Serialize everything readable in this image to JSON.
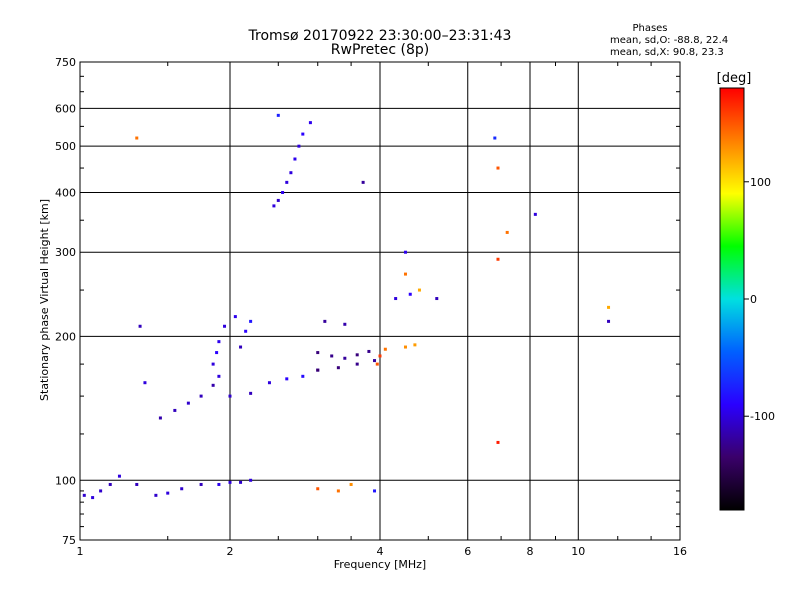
{
  "chart_data": {
    "type": "scatter",
    "title": "Tromsø 20170922 23:30:00–23:31:43",
    "subtitle": "RwPretec (8p)",
    "xlabel": "Frequency [MHz]",
    "ylabel": "Stationary phase Virtual Height [km]",
    "x_scale": "log",
    "y_scale": "log",
    "xlim": [
      1,
      16
    ],
    "ylim": [
      75,
      750
    ],
    "x_ticks": [
      1,
      2,
      4,
      6,
      8,
      10,
      16
    ],
    "y_ticks": [
      75,
      100,
      200,
      300,
      400,
      500,
      600,
      750
    ],
    "grid": true,
    "info": {
      "heading": "Phases",
      "line_o": "mean, sd,O: -88.8, 22.4",
      "line_x": "mean, sd,X:  90.8, 23.3"
    },
    "colorbar": {
      "label": "[deg]",
      "range": [
        -180,
        180
      ],
      "ticks": [
        -100,
        0,
        100
      ],
      "colors": [
        "#000000",
        "#3a006a",
        "#2a00ff",
        "#0060ff",
        "#00e0e0",
        "#00ff00",
        "#ffff00",
        "#ff8000",
        "#ff0000"
      ]
    },
    "series": [
      {
        "points": [
          [
            1.02,
            93,
            -105
          ],
          [
            1.06,
            92,
            -100
          ],
          [
            1.1,
            95,
            -105
          ],
          [
            1.15,
            98,
            -110
          ],
          [
            1.2,
            102,
            -100
          ],
          [
            1.3,
            98,
            -110
          ],
          [
            1.42,
            93,
            -105
          ],
          [
            1.5,
            94,
            -100
          ],
          [
            1.6,
            96,
            -105
          ],
          [
            1.75,
            98,
            -110
          ],
          [
            1.9,
            98,
            -95
          ],
          [
            2.0,
            99,
            -100
          ],
          [
            2.1,
            99,
            -105
          ],
          [
            2.2,
            100,
            -100
          ]
        ]
      },
      {
        "points": [
          [
            1.45,
            135,
            -115
          ],
          [
            1.55,
            140,
            -110
          ],
          [
            1.65,
            145,
            -105
          ],
          [
            1.75,
            150,
            -110
          ],
          [
            1.85,
            158,
            -115
          ],
          [
            1.9,
            165,
            -100
          ],
          [
            2.0,
            150,
            -105
          ],
          [
            2.2,
            152,
            -110
          ],
          [
            2.4,
            160,
            -100
          ],
          [
            2.6,
            163,
            -90
          ],
          [
            2.8,
            165,
            -85
          ],
          [
            3.0,
            170,
            -95
          ]
        ]
      },
      {
        "points": [
          [
            1.85,
            175,
            -100
          ],
          [
            1.88,
            185,
            -90
          ],
          [
            1.9,
            195,
            -95
          ],
          [
            1.95,
            210,
            -100
          ],
          [
            2.05,
            220,
            -95
          ],
          [
            2.1,
            190,
            -110
          ],
          [
            2.15,
            205,
            -90
          ],
          [
            2.2,
            215,
            -80
          ]
        ]
      },
      {
        "points": [
          [
            2.45,
            375,
            -100
          ],
          [
            2.5,
            385,
            -105
          ],
          [
            2.55,
            400,
            -95
          ],
          [
            2.6,
            420,
            -100
          ],
          [
            2.65,
            440,
            -100
          ],
          [
            2.7,
            470,
            -95
          ],
          [
            2.75,
            500,
            -100
          ],
          [
            2.8,
            530,
            -90
          ],
          [
            2.9,
            560,
            -95
          ],
          [
            2.5,
            580,
            -75
          ]
        ]
      },
      {
        "points": [
          [
            3.0,
            185,
            -130
          ],
          [
            3.2,
            182,
            -125
          ],
          [
            3.4,
            180,
            -120
          ],
          [
            3.6,
            183,
            -130
          ],
          [
            3.8,
            186,
            -125
          ],
          [
            3.0,
            170,
            -135
          ],
          [
            3.3,
            172,
            -130
          ],
          [
            3.6,
            175,
            -125
          ],
          [
            3.9,
            178,
            -120
          ],
          [
            3.1,
            215,
            -120
          ],
          [
            3.4,
            212,
            -115
          ]
        ]
      },
      {
        "points": [
          [
            3.95,
            175,
            150
          ],
          [
            4.0,
            182,
            160
          ],
          [
            4.1,
            188,
            140
          ],
          [
            4.5,
            190,
            130
          ],
          [
            4.7,
            192,
            125
          ],
          [
            4.3,
            240,
            -100
          ],
          [
            4.6,
            245,
            -90
          ],
          [
            4.5,
            300,
            -95
          ],
          [
            4.8,
            250,
            120
          ],
          [
            5.2,
            240,
            -110
          ],
          [
            4.5,
            270,
            140
          ]
        ]
      },
      {
        "points": [
          [
            1.3,
            520,
            140
          ],
          [
            1.32,
            210,
            -110
          ],
          [
            1.35,
            160,
            -100
          ],
          [
            3.0,
            96,
            150
          ],
          [
            3.3,
            95,
            140
          ],
          [
            3.5,
            98,
            130
          ],
          [
            3.9,
            95,
            -80
          ],
          [
            6.8,
            520,
            -70
          ],
          [
            6.9,
            450,
            150
          ],
          [
            6.9,
            290,
            160
          ],
          [
            6.9,
            120,
            170
          ],
          [
            7.2,
            330,
            140
          ],
          [
            8.2,
            360,
            -100
          ],
          [
            11.5,
            230,
            120
          ],
          [
            11.5,
            215,
            -110
          ],
          [
            3.7,
            420,
            -120
          ]
        ]
      }
    ]
  }
}
